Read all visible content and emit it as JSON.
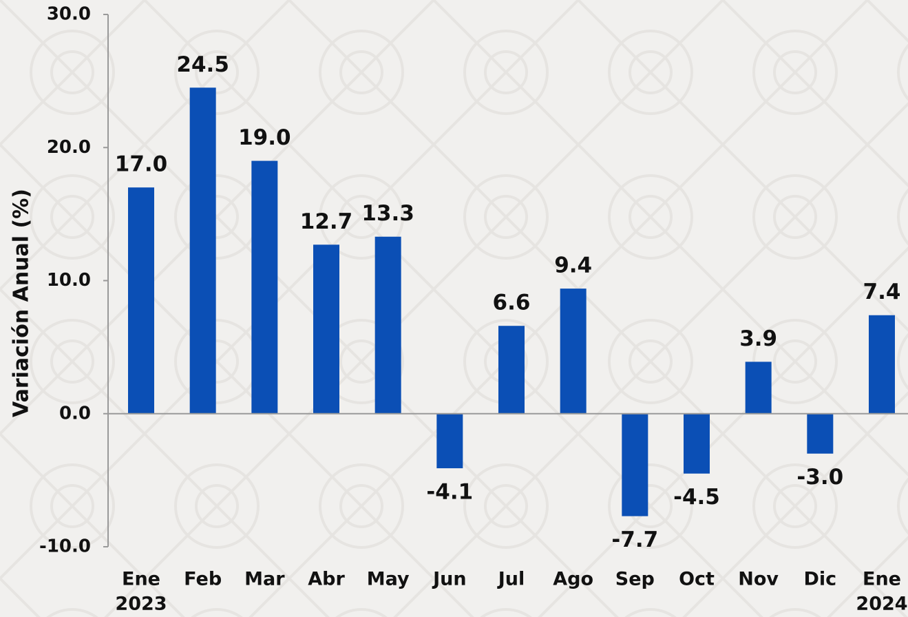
{
  "chart_data": {
    "type": "bar",
    "y_axis_label": "Variación  Anual  (%)",
    "categories": [
      [
        "Ene",
        "2023"
      ],
      "Feb",
      "Mar",
      "Abr",
      "May",
      "Jun",
      "Jul",
      "Ago",
      "Sep",
      "Oct",
      "Nov",
      "Dic",
      [
        "Ene",
        "2024"
      ]
    ],
    "values": [
      17.0,
      24.5,
      19.0,
      12.7,
      13.3,
      -4.1,
      6.6,
      9.4,
      -7.7,
      -4.5,
      3.9,
      -3.0,
      7.4
    ],
    "value_labels": [
      "17.0",
      "24.5",
      "19.0",
      "12.7",
      "13.3",
      "-4.1",
      "6.6",
      "9.4",
      "-7.7",
      "-4.5",
      "3.9",
      "-3.0",
      "7.4"
    ],
    "color": "#0b4fb5",
    "ylim": [
      -10,
      30
    ],
    "yticks": [
      {
        "value": -10,
        "label": "-10.0"
      },
      {
        "value": 0,
        "label": "0.0"
      },
      {
        "value": 10,
        "label": "10.0"
      },
      {
        "value": 20,
        "label": "20.0"
      },
      {
        "value": 30,
        "label": "30.0"
      }
    ],
    "grid": false
  }
}
